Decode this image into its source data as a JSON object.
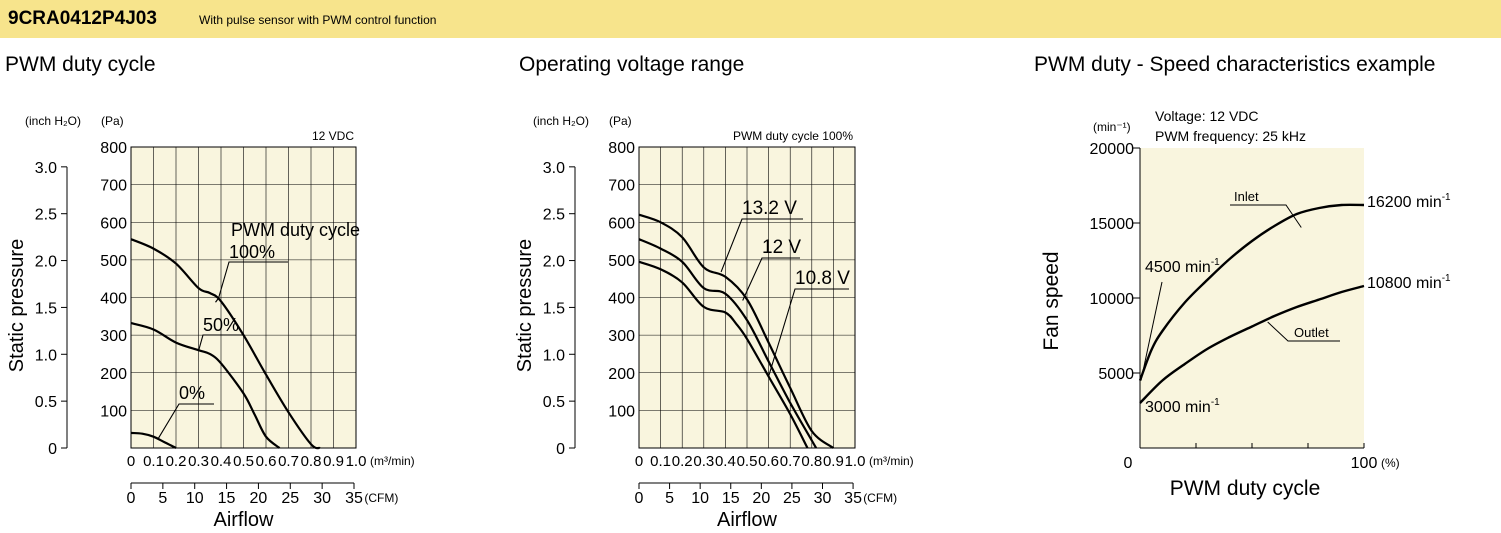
{
  "header": {
    "model": "9CRA0412P4J03",
    "subtitle": "With pulse sensor with PWM control function",
    "colors": {
      "banner": "#f7e48c",
      "plot_bg": "#f9f5de",
      "line": "#000000"
    }
  },
  "chart_data": [
    {
      "id": "duty",
      "type": "line",
      "title": "PWM duty cycle",
      "annotation": "12 VDC",
      "xlabel": "Airflow",
      "ylabel": "Static pressure",
      "x_unit": "(m³/min)",
      "x2_unit": "(CFM)",
      "y_unit_left": "(inch H₂O)",
      "y_unit_right": "(Pa)",
      "xlim": [
        0,
        1.0
      ],
      "ylim": [
        0,
        800
      ],
      "x_ticks": [
        "0",
        "0.1",
        "0.2",
        "0.3",
        "0.4",
        "0.5",
        "0.6",
        "0.7",
        "0.8",
        "0.9",
        "1.0"
      ],
      "x2_ticks": [
        "0",
        "5",
        "10",
        "15",
        "20",
        "25",
        "30",
        "35"
      ],
      "y_ticks": [
        "800",
        "700",
        "600",
        "500",
        "400",
        "300",
        "200",
        "100"
      ],
      "y2_ticks": [
        "3.0",
        "2.5",
        "2.0",
        "1.5",
        "1.0",
        "0.5",
        "0"
      ],
      "grid": true,
      "series_label_title": "PWM duty cycle",
      "series": [
        {
          "name": "100%",
          "points": [
            [
              0,
              555
            ],
            [
              0.1,
              530
            ],
            [
              0.2,
              490
            ],
            [
              0.3,
              425
            ],
            [
              0.35,
              412
            ],
            [
              0.4,
              390
            ],
            [
              0.5,
              300
            ],
            [
              0.6,
              195
            ],
            [
              0.7,
              95
            ],
            [
              0.8,
              10
            ],
            [
              0.84,
              0
            ]
          ]
        },
        {
          "name": "50%",
          "points": [
            [
              0,
              332
            ],
            [
              0.1,
              315
            ],
            [
              0.2,
              280
            ],
            [
              0.3,
              260
            ],
            [
              0.35,
              250
            ],
            [
              0.4,
              225
            ],
            [
              0.5,
              145
            ],
            [
              0.55,
              88
            ],
            [
              0.6,
              30
            ],
            [
              0.66,
              0
            ]
          ]
        },
        {
          "name": "0%",
          "points": [
            [
              0,
              40
            ],
            [
              0.05,
              38
            ],
            [
              0.1,
              30
            ],
            [
              0.15,
              15
            ],
            [
              0.2,
              0
            ]
          ]
        }
      ]
    },
    {
      "id": "voltage",
      "type": "line",
      "title": "Operating voltage range",
      "annotation": "PWM duty cycle 100%",
      "xlabel": "Airflow",
      "ylabel": "Static pressure",
      "x_unit": "(m³/min)",
      "x2_unit": "(CFM)",
      "y_unit_left": "(inch H₂O)",
      "y_unit_right": "(Pa)",
      "xlim": [
        0,
        1.0
      ],
      "ylim": [
        0,
        800
      ],
      "x_ticks": [
        "0",
        "0.1",
        "0.2",
        "0.3",
        "0.4",
        "0.5",
        "0.6",
        "0.7",
        "0.8",
        "0.9",
        "1.0"
      ],
      "x2_ticks": [
        "0",
        "5",
        "10",
        "15",
        "20",
        "25",
        "30",
        "35"
      ],
      "y_ticks": [
        "800",
        "700",
        "600",
        "500",
        "400",
        "300",
        "200",
        "100"
      ],
      "y2_ticks": [
        "3.0",
        "2.5",
        "2.0",
        "1.5",
        "1.0",
        "0.5",
        "0"
      ],
      "grid": true,
      "series": [
        {
          "name": "13.2 V",
          "points": [
            [
              0,
              620
            ],
            [
              0.1,
              600
            ],
            [
              0.2,
              560
            ],
            [
              0.3,
              480
            ],
            [
              0.4,
              455
            ],
            [
              0.5,
              395
            ],
            [
              0.6,
              280
            ],
            [
              0.7,
              160
            ],
            [
              0.8,
              45
            ],
            [
              0.9,
              0
            ]
          ]
        },
        {
          "name": "12 V",
          "points": [
            [
              0,
              555
            ],
            [
              0.1,
              530
            ],
            [
              0.2,
              495
            ],
            [
              0.3,
              425
            ],
            [
              0.4,
              410
            ],
            [
              0.5,
              340
            ],
            [
              0.6,
              230
            ],
            [
              0.7,
              120
            ],
            [
              0.8,
              20
            ],
            [
              0.82,
              0
            ]
          ]
        },
        {
          "name": "10.8 V",
          "points": [
            [
              0,
              495
            ],
            [
              0.1,
              475
            ],
            [
              0.2,
              440
            ],
            [
              0.3,
              375
            ],
            [
              0.4,
              360
            ],
            [
              0.45,
              330
            ],
            [
              0.5,
              290
            ],
            [
              0.6,
              190
            ],
            [
              0.7,
              90
            ],
            [
              0.78,
              0
            ]
          ]
        }
      ]
    },
    {
      "id": "speed",
      "type": "line",
      "title": "PWM duty - Speed characteristics example",
      "annotation_lines": [
        "Voltage: 12 VDC",
        "PWM frequency: 25 kHz"
      ],
      "xlabel": "PWM duty cycle",
      "ylabel": "Fan speed",
      "x_unit": "(%)",
      "y_unit": "(min⁻¹)",
      "xlim": [
        0,
        100
      ],
      "ylim": [
        0,
        20000
      ],
      "x_ticks": [
        "0",
        "100"
      ],
      "y_ticks": [
        "20000",
        "15000",
        "10000",
        "5000"
      ],
      "grid": false,
      "series": [
        {
          "name": "Inlet",
          "points": [
            [
              0,
              4500
            ],
            [
              5,
              6500
            ],
            [
              10,
              7800
            ],
            [
              20,
              9700
            ],
            [
              30,
              11200
            ],
            [
              40,
              12600
            ],
            [
              50,
              13800
            ],
            [
              60,
              14800
            ],
            [
              70,
              15600
            ],
            [
              80,
              16000
            ],
            [
              90,
              16200
            ],
            [
              100,
              16200
            ]
          ]
        },
        {
          "name": "Outlet",
          "points": [
            [
              0,
              3000
            ],
            [
              10,
              4500
            ],
            [
              20,
              5600
            ],
            [
              30,
              6600
            ],
            [
              40,
              7400
            ],
            [
              50,
              8100
            ],
            [
              60,
              8800
            ],
            [
              70,
              9400
            ],
            [
              80,
              9900
            ],
            [
              90,
              10400
            ],
            [
              100,
              10800
            ]
          ]
        }
      ],
      "endpoint_labels": {
        "inlet_start": "4500 min",
        "inlet_end": "16200 min",
        "outlet_start": "3000 min",
        "outlet_end": "10800 min",
        "superscript": "-1"
      }
    }
  ]
}
